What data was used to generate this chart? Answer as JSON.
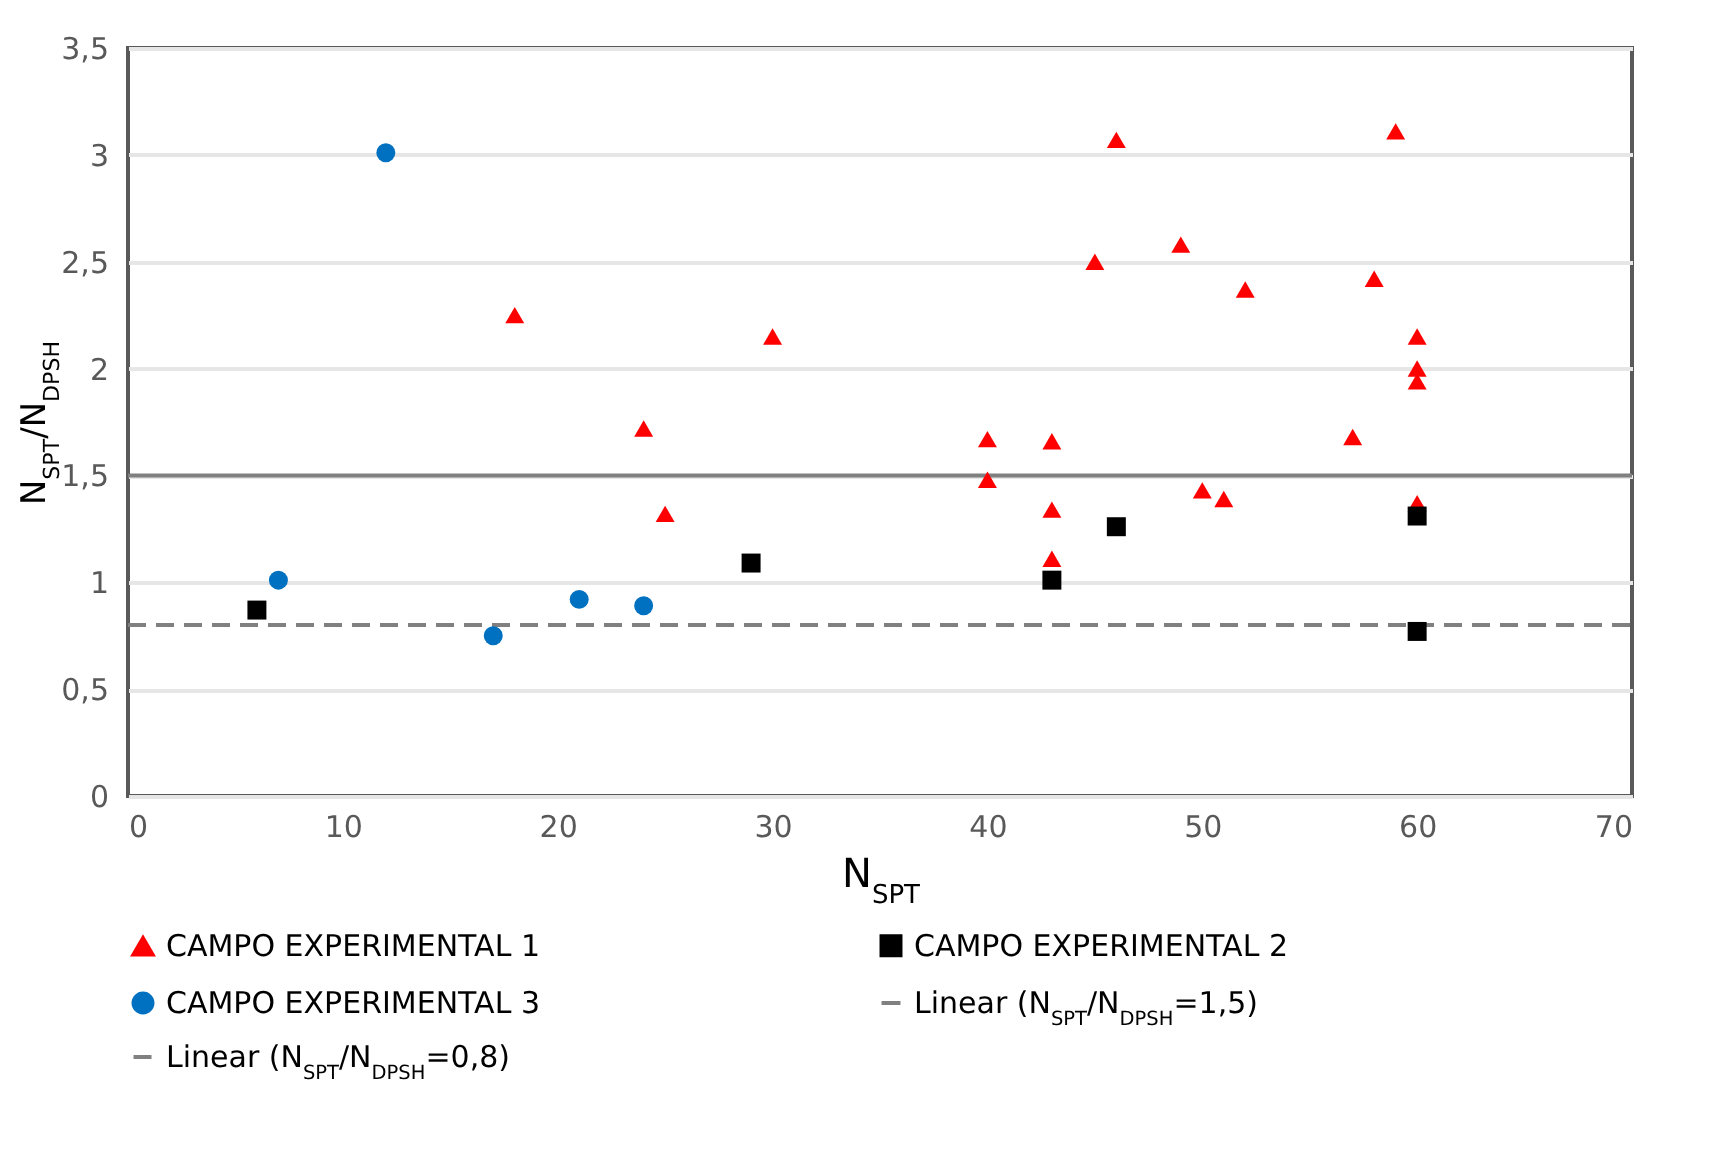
{
  "chart_data": {
    "type": "scatter",
    "xlabel": "N$_{SPT}$",
    "ylabel": "N$_{SPT}$/N$_{DPSH}$",
    "xlim": [
      0,
      70
    ],
    "xticks": [
      0,
      10,
      20,
      30,
      40,
      50,
      60,
      70
    ],
    "ylim": [
      0,
      3.5
    ],
    "yticks": [
      0,
      {
        "value": 0.5,
        "label": "0,5"
      },
      1,
      {
        "value": 1.5,
        "label": "1,5"
      },
      2,
      {
        "value": 2.5,
        "label": "2,5"
      },
      3,
      {
        "value": 3.5,
        "label": "3,5"
      }
    ],
    "grid": "y",
    "legend": "bottom",
    "series": [
      {
        "name": "CAMPO EXPERIMENTAL 1",
        "color": "#ff0000",
        "marker": "triangle",
        "x": [
          18,
          24,
          25,
          30,
          40,
          40,
          43,
          43,
          43,
          45,
          46,
          49,
          50,
          51,
          52,
          57,
          58,
          59,
          60,
          60,
          60,
          60
        ],
        "values": [
          2.25,
          1.72,
          1.32,
          2.15,
          1.67,
          1.48,
          1.66,
          1.34,
          1.11,
          2.5,
          3.07,
          2.58,
          1.43,
          1.39,
          2.37,
          1.68,
          2.42,
          3.11,
          2.15,
          2.0,
          1.94,
          1.37
        ]
      },
      {
        "name": "CAMPO EXPERIMENTAL 2",
        "color": "#000000",
        "marker": "square",
        "x": [
          6,
          29,
          43,
          46,
          60,
          60
        ],
        "values": [
          0.87,
          1.09,
          1.01,
          1.26,
          1.31,
          0.77
        ]
      },
      {
        "name": "CAMPO EXPERIMENTAL 3",
        "color": "#0070c0",
        "marker": "circle",
        "x": [
          7,
          12,
          17,
          21,
          24
        ],
        "values": [
          1.01,
          3.01,
          0.75,
          0.92,
          0.89
        ]
      },
      {
        "name": "Linear  (N$_{SPT}$/N$_{DPSH}$=1,5)",
        "type": "line",
        "color": "#808080",
        "line_style": "solid",
        "marker": "none",
        "x": [
          0,
          70
        ],
        "values": [
          1.5,
          1.5
        ]
      },
      {
        "name": "Linear  (N$_{SPT}$/N$_{DPSH}$=0,8)",
        "type": "line",
        "color": "#808080",
        "line_style": "dashed",
        "marker": "none",
        "x": [
          0,
          70
        ],
        "values": [
          0.8,
          0.8
        ]
      }
    ]
  }
}
